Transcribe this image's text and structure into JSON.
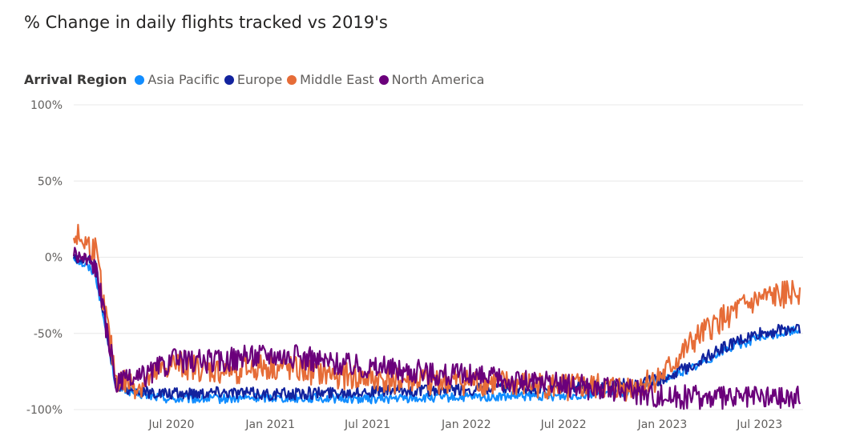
{
  "title": "% Change in daily flights tracked vs 2019's",
  "legend": {
    "title": "Arrival Region",
    "items": [
      {
        "label": "Asia Pacific",
        "color": "#118dff"
      },
      {
        "label": "Europe",
        "color": "#12239e"
      },
      {
        "label": "Middle East",
        "color": "#e66c37"
      },
      {
        "label": "North America",
        "color": "#6b007b"
      }
    ]
  },
  "chart_data": {
    "type": "line",
    "title": "% Change in daily flights tracked vs 2019's",
    "xlabel": "",
    "ylabel": "",
    "ylim": [
      -100,
      100
    ],
    "xlim": [
      "2020-01-01",
      "2023-09-20"
    ],
    "y_ticks": [
      {
        "value": 100,
        "label": "100%"
      },
      {
        "value": 50,
        "label": "50%"
      },
      {
        "value": 0,
        "label": "0%"
      },
      {
        "value": -50,
        "label": "-50%"
      },
      {
        "value": -100,
        "label": "-100%"
      }
    ],
    "x_ticks": [
      {
        "date": "2020-07-01",
        "label": "Jul 2020"
      },
      {
        "date": "2021-01-01",
        "label": "Jan 2021"
      },
      {
        "date": "2021-07-01",
        "label": "Jul 2021"
      },
      {
        "date": "2022-01-01",
        "label": "Jan 2022"
      },
      {
        "date": "2022-07-01",
        "label": "Jul 2022"
      },
      {
        "date": "2023-01-01",
        "label": "Jan 2023"
      },
      {
        "date": "2023-07-01",
        "label": "Jul 2023"
      }
    ],
    "grid": true,
    "legend_position": "top-left",
    "series": [
      {
        "name": "Asia Pacific",
        "color": "#118dff",
        "points": [
          [
            "2020-01-01",
            0
          ],
          [
            "2020-02-10",
            -10
          ],
          [
            "2020-03-20",
            -85
          ],
          [
            "2020-05-01",
            -90
          ],
          [
            "2020-07-01",
            -93
          ],
          [
            "2020-10-01",
            -93
          ],
          [
            "2021-01-01",
            -92
          ],
          [
            "2021-07-01",
            -93
          ],
          [
            "2022-01-01",
            -92
          ],
          [
            "2022-07-01",
            -91
          ],
          [
            "2022-11-01",
            -88
          ],
          [
            "2023-01-01",
            -80
          ],
          [
            "2023-03-01",
            -72
          ],
          [
            "2023-05-01",
            -60
          ],
          [
            "2023-07-01",
            -53
          ],
          [
            "2023-09-15",
            -47
          ]
        ]
      },
      {
        "name": "Europe",
        "color": "#12239e",
        "points": [
          [
            "2020-01-01",
            0
          ],
          [
            "2020-02-10",
            -5
          ],
          [
            "2020-03-20",
            -84
          ],
          [
            "2020-05-01",
            -88
          ],
          [
            "2020-07-01",
            -90
          ],
          [
            "2020-10-01",
            -88
          ],
          [
            "2021-01-01",
            -90
          ],
          [
            "2021-07-01",
            -88
          ],
          [
            "2022-01-01",
            -87
          ],
          [
            "2022-07-01",
            -86
          ],
          [
            "2022-11-01",
            -83
          ],
          [
            "2023-01-01",
            -80
          ],
          [
            "2023-03-01",
            -70
          ],
          [
            "2023-05-01",
            -58
          ],
          [
            "2023-07-01",
            -50
          ],
          [
            "2023-09-15",
            -46
          ]
        ]
      },
      {
        "name": "Middle East",
        "color": "#e66c37",
        "points": [
          [
            "2020-01-01",
            15
          ],
          [
            "2020-02-10",
            5
          ],
          [
            "2020-03-20",
            -80
          ],
          [
            "2020-05-01",
            -85
          ],
          [
            "2020-07-01",
            -70
          ],
          [
            "2020-10-01",
            -75
          ],
          [
            "2021-01-01",
            -72
          ],
          [
            "2021-07-01",
            -80
          ],
          [
            "2022-01-01",
            -82
          ],
          [
            "2022-07-01",
            -85
          ],
          [
            "2022-11-01",
            -86
          ],
          [
            "2023-01-01",
            -78
          ],
          [
            "2023-03-01",
            -55
          ],
          [
            "2023-05-01",
            -38
          ],
          [
            "2023-07-01",
            -28
          ],
          [
            "2023-09-15",
            -22
          ]
        ]
      },
      {
        "name": "North America",
        "color": "#6b007b",
        "points": [
          [
            "2020-01-01",
            3
          ],
          [
            "2020-02-10",
            -5
          ],
          [
            "2020-03-20",
            -83
          ],
          [
            "2020-05-01",
            -80
          ],
          [
            "2020-07-01",
            -68
          ],
          [
            "2020-10-01",
            -68
          ],
          [
            "2021-01-01",
            -63
          ],
          [
            "2021-07-01",
            -72
          ],
          [
            "2022-01-01",
            -78
          ],
          [
            "2022-07-01",
            -84
          ],
          [
            "2022-11-01",
            -88
          ],
          [
            "2023-01-01",
            -91
          ],
          [
            "2023-03-01",
            -92
          ],
          [
            "2023-05-01",
            -93
          ],
          [
            "2023-07-01",
            -92
          ],
          [
            "2023-09-15",
            -92
          ]
        ]
      }
    ]
  }
}
